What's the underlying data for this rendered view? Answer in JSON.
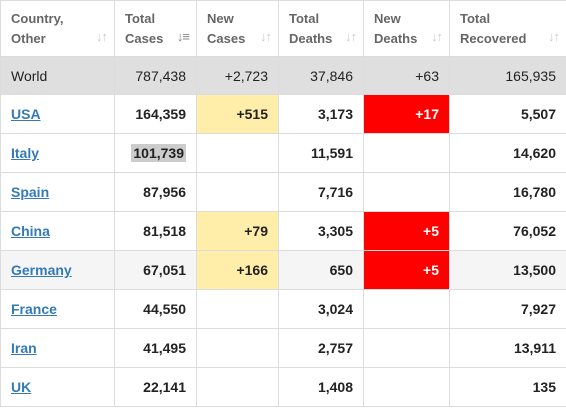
{
  "columns": [
    {
      "line1": "Country,",
      "line2": "Other",
      "sort_icon": "sort-neutral-icon"
    },
    {
      "line1": "Total",
      "line2": "Cases",
      "sort_icon": "sort-descending-icon"
    },
    {
      "line1": "New",
      "line2": "Cases",
      "sort_icon": "sort-neutral-icon"
    },
    {
      "line1": "Total",
      "line2": "Deaths",
      "sort_icon": "sort-neutral-icon"
    },
    {
      "line1": "New",
      "line2": "Deaths",
      "sort_icon": "sort-neutral-icon"
    },
    {
      "line1": "Total",
      "line2": "Recovered",
      "sort_icon": "sort-neutral-icon"
    }
  ],
  "world": {
    "country": "World",
    "total_cases": "787,438",
    "new_cases": "+2,723",
    "total_deaths": "37,846",
    "new_deaths": "+63",
    "total_recovered": "165,935"
  },
  "rows": [
    {
      "country": "USA",
      "total_cases": "164,359",
      "new_cases": "+515",
      "total_deaths": "3,173",
      "new_deaths": "+17",
      "total_recovered": "5,507"
    },
    {
      "country": "Italy",
      "total_cases": "101,739",
      "new_cases": "",
      "total_deaths": "11,591",
      "new_deaths": "",
      "total_recovered": "14,620"
    },
    {
      "country": "Spain",
      "total_cases": "87,956",
      "new_cases": "",
      "total_deaths": "7,716",
      "new_deaths": "",
      "total_recovered": "16,780"
    },
    {
      "country": "China",
      "total_cases": "81,518",
      "new_cases": "+79",
      "total_deaths": "3,305",
      "new_deaths": "+5",
      "total_recovered": "76,052"
    },
    {
      "country": "Germany",
      "total_cases": "67,051",
      "new_cases": "+166",
      "total_deaths": "650",
      "new_deaths": "+5",
      "total_recovered": "13,500"
    },
    {
      "country": "France",
      "total_cases": "44,550",
      "new_cases": "",
      "total_deaths": "3,024",
      "new_deaths": "",
      "total_recovered": "7,927"
    },
    {
      "country": "Iran",
      "total_cases": "41,495",
      "new_cases": "",
      "total_deaths": "2,757",
      "new_deaths": "",
      "total_recovered": "13,911"
    },
    {
      "country": "UK",
      "total_cases": "22,141",
      "new_cases": "",
      "total_deaths": "1,408",
      "new_deaths": "",
      "total_recovered": "135"
    }
  ],
  "colors": {
    "new_cases_highlight": "#ffeeaa",
    "new_deaths_highlight": "#ff0000",
    "link": "#337ab7",
    "world_row": "#dfdfdf"
  }
}
